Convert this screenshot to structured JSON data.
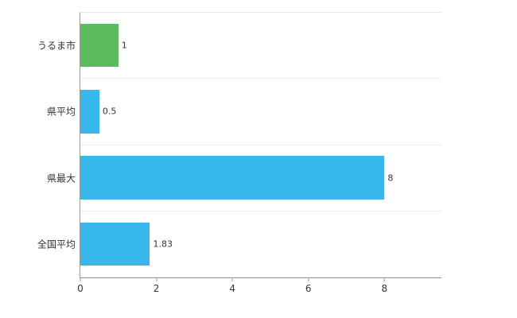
{
  "chart_data": {
    "type": "bar",
    "orientation": "horizontal",
    "title": "",
    "xlabel": "",
    "ylabel": "",
    "categories": [
      "うるま市",
      "県平均",
      "県最大",
      "全国平均"
    ],
    "values": [
      1,
      0.5,
      8,
      1.83
    ],
    "value_labels": [
      "1",
      "0.5",
      "8",
      "1.83"
    ],
    "bar_colors": [
      "#5cbb5c",
      "#38b7ea",
      "#38b7ea",
      "#38b7ea"
    ],
    "xlim": [
      0,
      9.5
    ],
    "x_ticks": [
      0,
      2,
      4,
      6,
      8
    ],
    "x_tick_labels": [
      "0",
      "2",
      "4",
      "6",
      "8"
    ],
    "grid": "horizontal-row-separators",
    "legend_position": "none",
    "axis_color": "#9a9a9a",
    "gridline_color": "#eeeeee",
    "background_color": "#ffffff"
  }
}
